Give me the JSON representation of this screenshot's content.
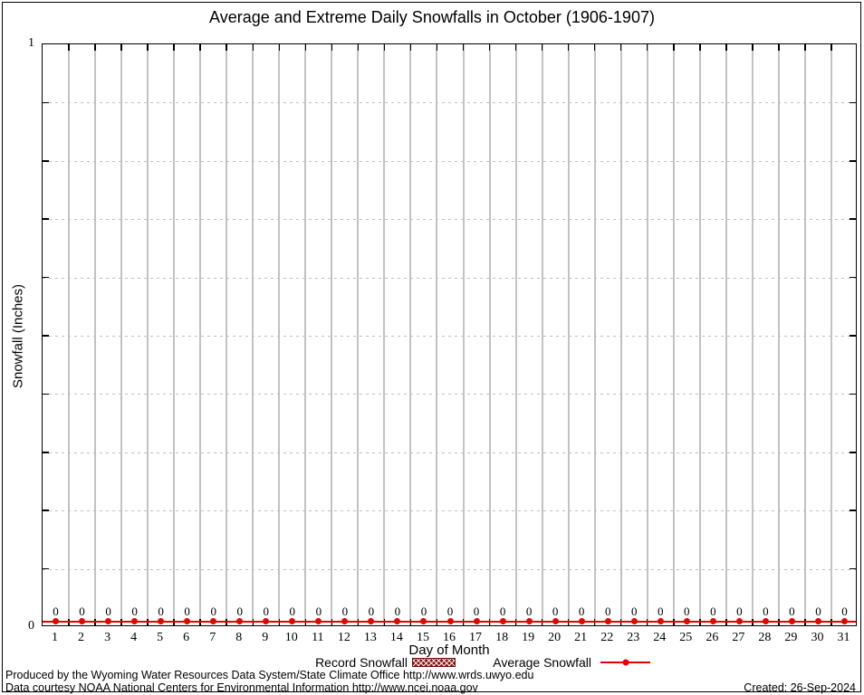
{
  "title": "Average and Extreme Daily Snowfalls in October (1906-1907)",
  "chart_data": {
    "type": "line",
    "title": "Average and Extreme Daily Snowfalls in October (1906-1907)",
    "xlabel": "Day of Month",
    "ylabel": "Snowfall (Inches)",
    "xlim": [
      0.5,
      31.5
    ],
    "ylim": [
      0,
      1
    ],
    "x": [
      1,
      2,
      3,
      4,
      5,
      6,
      7,
      8,
      9,
      10,
      11,
      12,
      13,
      14,
      15,
      16,
      17,
      18,
      19,
      20,
      21,
      22,
      23,
      24,
      25,
      26,
      27,
      28,
      29,
      30,
      31
    ],
    "series": [
      {
        "name": "Record Snowfall",
        "style": "boxes-hatched",
        "color": "#8b1414",
        "values": [
          0,
          0,
          0,
          0,
          0,
          0,
          0,
          0,
          0,
          0,
          0,
          0,
          0,
          0,
          0,
          0,
          0,
          0,
          0,
          0,
          0,
          0,
          0,
          0,
          0,
          0,
          0,
          0,
          0,
          0,
          0
        ]
      },
      {
        "name": "Average Snowfall",
        "style": "line-points",
        "color": "#e60000",
        "values": [
          0,
          0,
          0,
          0,
          0,
          0,
          0,
          0,
          0,
          0,
          0,
          0,
          0,
          0,
          0,
          0,
          0,
          0,
          0,
          0,
          0,
          0,
          0,
          0,
          0,
          0,
          0,
          0,
          0,
          0,
          0
        ]
      }
    ],
    "point_labels": [
      "0",
      "0",
      "0",
      "0",
      "0",
      "0",
      "0",
      "0",
      "0",
      "0",
      "0",
      "0",
      "0",
      "0",
      "0",
      "0",
      "0",
      "0",
      "0",
      "0",
      "0",
      "0",
      "0",
      "0",
      "0",
      "0",
      "0",
      "0",
      "0",
      "0",
      "0"
    ],
    "yticks": {
      "interval": 0.1,
      "labeled": [
        {
          "value": 1,
          "label": "1"
        },
        {
          "value": 0,
          "label": "0"
        }
      ]
    },
    "grid": {
      "vertical": "solid-at-half-days",
      "horizontal": "dotted-at-0.1",
      "color": "#c2c2c2"
    },
    "legend_position": "bottom-center"
  },
  "legend": {
    "items": [
      {
        "label": "Record Snowfall"
      },
      {
        "label": "Average Snowfall"
      }
    ]
  },
  "colors": {
    "record": "#8b1414",
    "average": "#e60000",
    "grid": "#c2c2c2",
    "border": "#000000"
  },
  "footer": {
    "line1": "Produced by the Wyoming Water Resources Data System/State Climate Office http://www.wrds.uwyo.edu",
    "line2": "Data courtesy NOAA National Centers for Environmental Information http://www.ncei.noaa.gov",
    "created": "Created: 26-Sep-2024"
  }
}
